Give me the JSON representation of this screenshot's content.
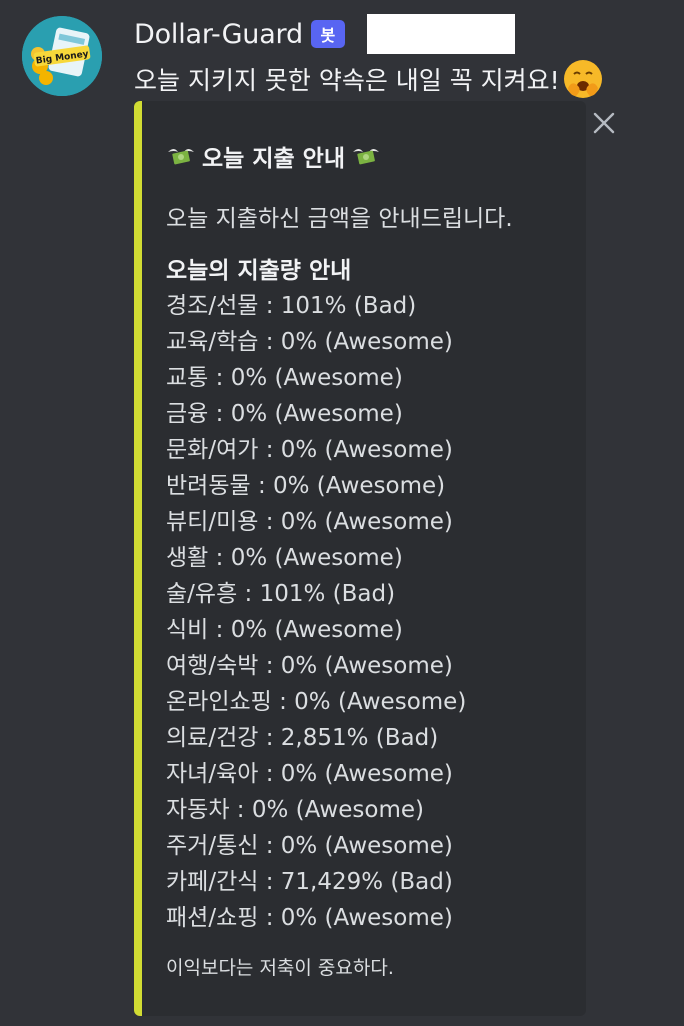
{
  "author": {
    "name": "Dollar-Guard",
    "bot_badge": "봇",
    "avatar_text": "Big Money"
  },
  "message": {
    "text": "오늘 지키지 못한 약속은 내일 꼭 지켜요!",
    "emoji": "face-with-hand-over-mouth-emoji"
  },
  "embed": {
    "accent_color": "#d1dc33",
    "title": "오늘 지출 안내",
    "title_icon": "money-with-wings-icon",
    "description": "오늘 지출하신 금액을 안내드립니다.",
    "field_name": "오늘의 지출량 안내",
    "items": [
      "경조/선물 : 101% (Bad)",
      "교육/학습 : 0% (Awesome)",
      "교통 : 0% (Awesome)",
      "금융 : 0% (Awesome)",
      "문화/여가 : 0% (Awesome)",
      "반려동물 : 0% (Awesome)",
      "뷰티/미용 : 0% (Awesome)",
      "생활 : 0% (Awesome)",
      "술/유흥 : 101% (Bad)",
      "식비 : 0% (Awesome)",
      "여행/숙박 : 0% (Awesome)",
      "온라인쇼핑 : 0% (Awesome)",
      "의료/건강 : 2,851% (Bad)",
      "자녀/육아 : 0% (Awesome)",
      "자동차 : 0% (Awesome)",
      "주거/통신 : 0% (Awesome)",
      "카페/간식 : 71,429% (Bad)",
      "패션/쇼핑 : 0% (Awesome)"
    ],
    "footer": "이익보다는 저축이 중요하다."
  },
  "colors": {
    "background": "#313338",
    "embed_background": "#2b2d31",
    "bot_badge": "#5865f2"
  }
}
